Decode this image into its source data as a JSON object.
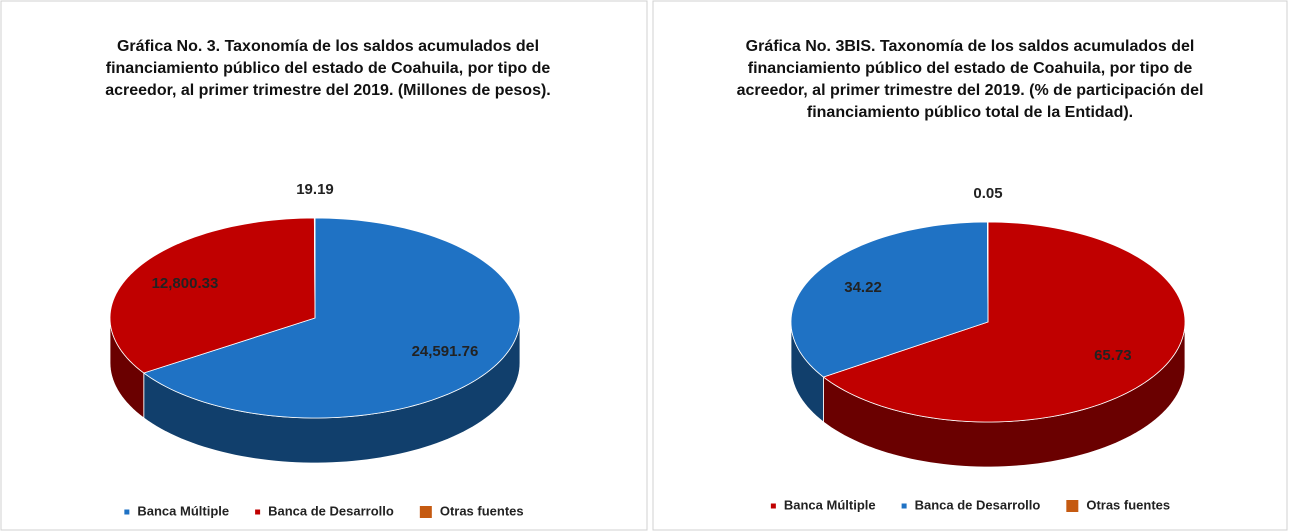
{
  "chart_data": [
    {
      "type": "pie",
      "title": "Gráfica No. 3. Taxonomía de los saldos acumulados del financiamiento público del estado de Coahuila, por tipo de acreedor, al primer trimestre del 2019. (Millones de pesos).",
      "categories": [
        "Banca Múltiple",
        "Banca de Desarrollo",
        "Otras fuentes"
      ],
      "values": [
        24591.76,
        12800.33,
        19.19
      ],
      "value_labels": [
        "24,591.76",
        "12,800.33",
        "19.19"
      ],
      "colors": [
        "#1f72c4",
        "#c00000",
        "#c55a11"
      ],
      "legend": "bottom"
    },
    {
      "type": "pie",
      "title": "Gráfica No. 3BIS. Taxonomía de los saldos acumulados del financiamiento público del estado de Coahuila, por tipo de acreedor, al primer trimestre del 2019. (% de participación del financiamiento público total de la Entidad).",
      "categories": [
        "Banca Múltiple",
        "Banca de Desarrollo",
        "Otras fuentes"
      ],
      "values": [
        65.73,
        34.22,
        0.05
      ],
      "colors": [
        "#c00000",
        "#1f72c4",
        "#c55a11"
      ],
      "legend": "bottom"
    }
  ]
}
